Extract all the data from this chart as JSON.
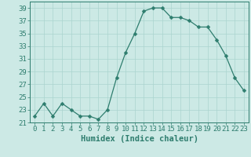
{
  "x": [
    0,
    1,
    2,
    3,
    4,
    5,
    6,
    7,
    8,
    9,
    10,
    11,
    12,
    13,
    14,
    15,
    16,
    17,
    18,
    19,
    20,
    21,
    22,
    23
  ],
  "y": [
    22,
    24,
    22,
    24,
    23,
    22,
    22,
    21.5,
    23,
    28,
    32,
    35,
    38.5,
    39,
    39,
    37.5,
    37.5,
    37,
    36,
    36,
    34,
    31.5,
    28,
    26
  ],
  "line_color": "#2e7d6e",
  "marker": "D",
  "marker_size": 2.5,
  "bg_color": "#cce9e5",
  "grid_color": "#aad4cf",
  "xlabel": "Humidex (Indice chaleur)",
  "xlim": [
    -0.5,
    23.5
  ],
  "ylim": [
    21,
    40
  ],
  "yticks": [
    21,
    23,
    25,
    27,
    29,
    31,
    33,
    35,
    37,
    39
  ],
  "xlabel_fontsize": 7.5,
  "tick_fontsize": 6.5
}
